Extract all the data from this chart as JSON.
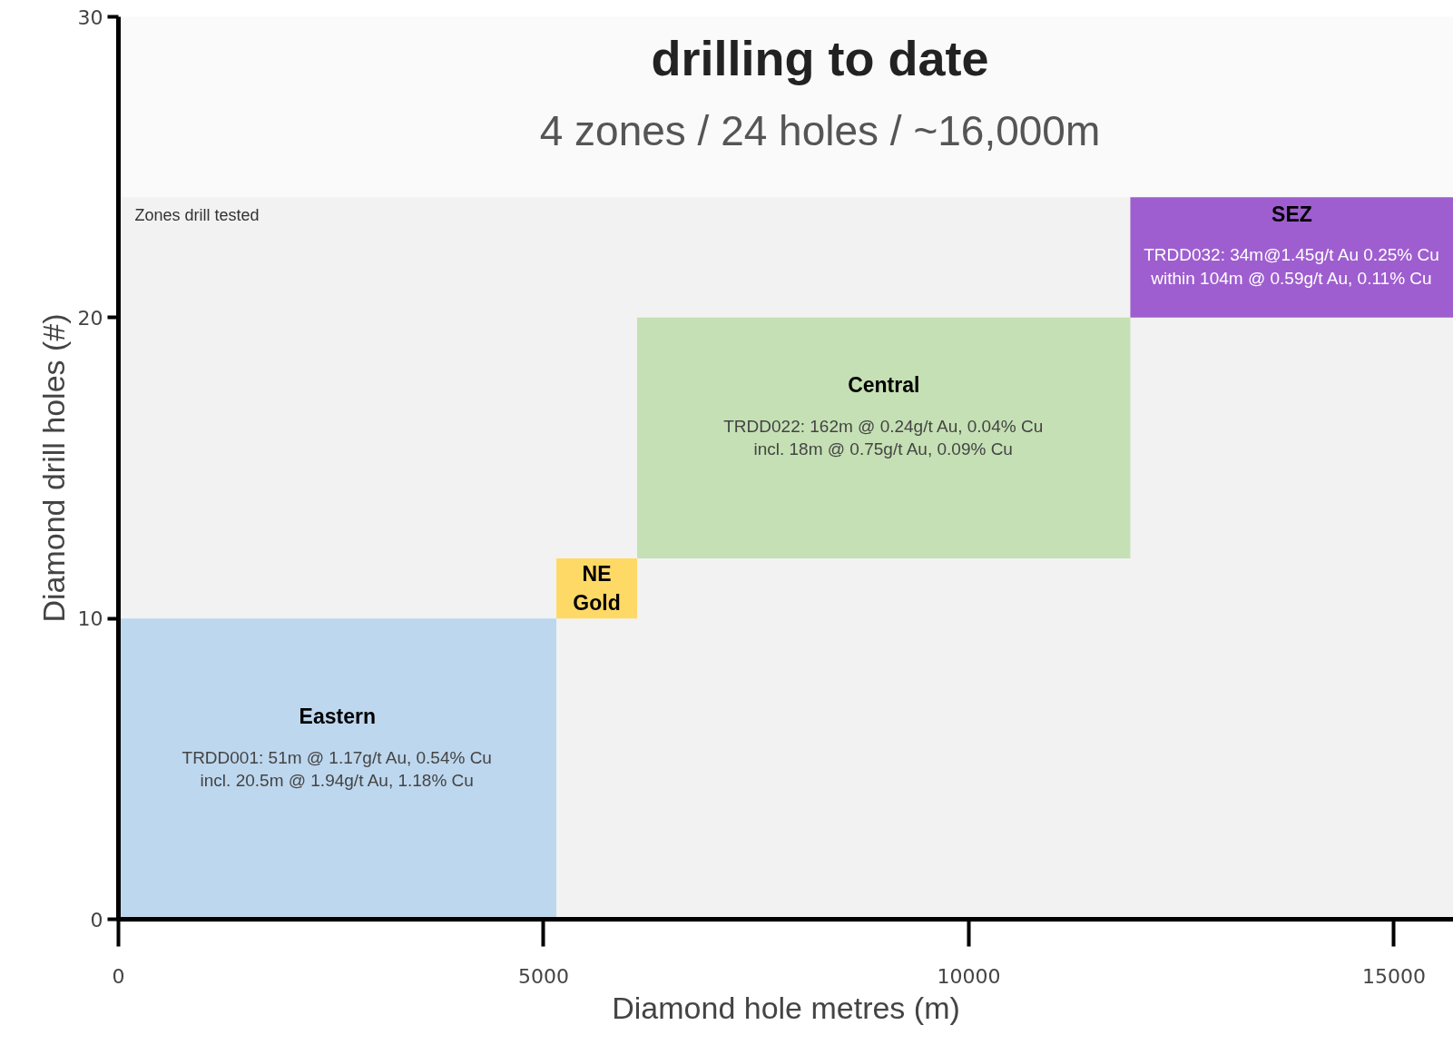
{
  "chart_data": {
    "type": "histogram",
    "title": "drilling to date",
    "subtitle": "4 zones / 24 holes / ~16,000m",
    "xlabel": "Diamond hole metres (m)",
    "ylabel": "Diamond drill holes (#)",
    "categories": [
      "Eastern",
      "NE\nGold",
      "Central",
      "SEZ"
    ],
    "bins": [
      0,
      5150,
      6100,
      11900,
      15700
    ],
    "values": [
      10,
      2,
      8,
      4
    ],
    "base": [
      0,
      10,
      12,
      20
    ],
    "colors": [
      "#bdd7ee",
      "#ffd966",
      "#c5e0b4",
      "#9e5ecf"
    ],
    "xlim": [
      0,
      15700
    ],
    "ylim": [
      0,
      30
    ],
    "xticks": [
      0,
      5000,
      10000,
      15000
    ],
    "yticks": [
      0,
      10,
      20,
      30
    ],
    "grid": false,
    "bands": [
      {
        "axis": "y",
        "from": 0,
        "to": 24,
        "label": "Zones drill tested",
        "color": "#f2f2f2"
      }
    ],
    "annotations": [
      "TRDD001: 51m @ 1.17g/t Au, 0.54% Cu\nincl. 20.5m @ 1.94g/t Au, 1.18% Cu",
      "TRDD022: 162m @ 0.24g/t Au, 0.04% Cu\nincl. 18m @ 0.75g/t Au, 0.09% Cu",
      "TRDD032: 34m@1.45g/t Au 0.25% Cu\nwithin 104m @ 0.59g/t Au, 0.11% Cu"
    ]
  }
}
